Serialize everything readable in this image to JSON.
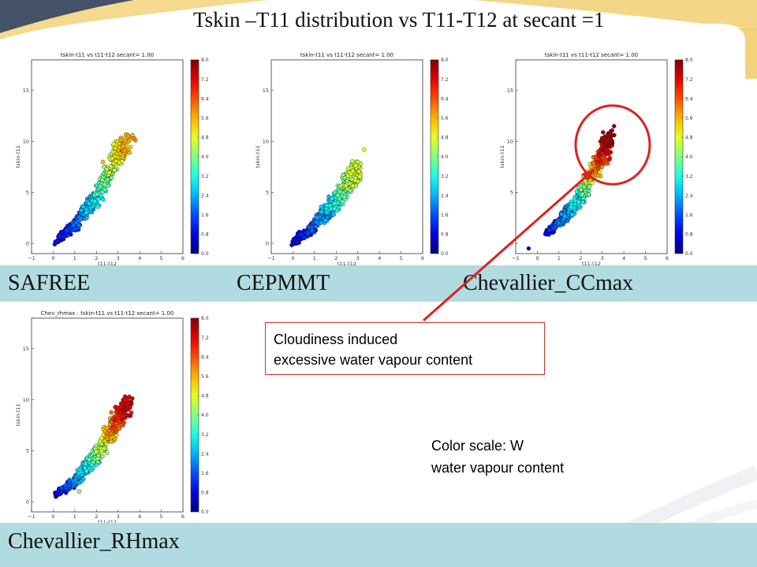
{
  "slide": {
    "title": "Tskin –T11 distribution vs T11-T12 at secant =1",
    "band_labels": [
      "SAFREE",
      "CEPMMT",
      "Chevallier_CCmax"
    ],
    "bottom_label": "Chevallier_RHmax",
    "callout": {
      "line1": "Cloudiness induced",
      "line2": "excessive water vapour content"
    },
    "note": {
      "line1": "Color scale: W",
      "line2": "water vapour content"
    },
    "colors": {
      "band": "#b1dbe0",
      "annotation": "#e02020",
      "deco_gold": "#f2d27a",
      "deco_navy": "#233a63"
    }
  },
  "chart_data": [
    {
      "type": "scatter",
      "title": "tskin-t11 vs t11-t12  secant= 1.00",
      "xlabel": "t11-t12",
      "ylabel": "tskin-t11",
      "xlim": [
        -1,
        6
      ],
      "ylim": [
        -1,
        18
      ],
      "xticks": [
        "−1",
        "0",
        "1",
        "2",
        "3",
        "4",
        "5",
        "6"
      ],
      "yticks": [
        "0",
        "5",
        "10",
        "15"
      ],
      "colorbar": {
        "min": 0.0,
        "max": 8.0,
        "ticks": [
          "0.0",
          "0.8",
          "1.6",
          "2.4",
          "3.2",
          "4.0",
          "4.8",
          "5.6",
          "6.4",
          "7.2",
          "8.0"
        ]
      },
      "trend": [
        [
          0,
          0,
          0.3
        ],
        [
          1,
          1.8,
          1.3
        ],
        [
          2,
          4.5,
          2.9
        ],
        [
          2.5,
          6.5,
          3.8
        ],
        [
          3,
          8.8,
          4.8
        ],
        [
          3.5,
          10.0,
          5.5
        ]
      ],
      "highlights": [
        [
          3.8,
          10.1,
          5.8
        ],
        [
          3.75,
          10.3,
          6.0
        ],
        [
          2.3,
          8.0,
          5.5
        ],
        [
          3.2,
          8.6,
          5.2
        ]
      ],
      "grid": false,
      "legend": "none"
    },
    {
      "type": "scatter",
      "title": "tskin-t11 vs t11-t12  secant= 1.00",
      "xlabel": "t11-t12",
      "ylabel": "tskin-t11",
      "xlim": [
        -1,
        6
      ],
      "ylim": [
        -1,
        18
      ],
      "xticks": [
        "−1",
        "0",
        "1",
        "2",
        "3",
        "4",
        "5",
        "6"
      ],
      "yticks": [
        "0",
        "5",
        "10",
        "15"
      ],
      "colorbar": {
        "min": 0.0,
        "max": 8.0,
        "ticks": [
          "0.0",
          "0.8",
          "1.6",
          "2.4",
          "3.2",
          "4.0",
          "4.8",
          "5.6",
          "6.4",
          "7.2",
          "8.0"
        ]
      },
      "trend": [
        [
          0,
          0,
          0.3
        ],
        [
          1,
          1.8,
          1.4
        ],
        [
          2,
          4.2,
          3.0
        ],
        [
          2.5,
          5.8,
          4.0
        ],
        [
          3,
          7.3,
          4.6
        ]
      ],
      "highlights": [
        [
          3.3,
          9.2,
          5.0
        ],
        [
          2.8,
          7.0,
          4.8
        ]
      ],
      "grid": false,
      "legend": "none"
    },
    {
      "type": "scatter",
      "title": "tskin-t11 vs t11-t12  secant= 1.00",
      "xlabel": "t11-t12",
      "ylabel": "tskin-t11",
      "xlim": [
        -1,
        6
      ],
      "ylim": [
        -1,
        18
      ],
      "xticks": [
        "−1",
        "0",
        "1",
        "2",
        "3",
        "4",
        "5",
        "6"
      ],
      "yticks": [
        "0",
        "5",
        "10",
        "15"
      ],
      "colorbar": {
        "min": 0.0,
        "max": 8.0,
        "ticks": [
          "0.0",
          "0.8",
          "1.6",
          "2.4",
          "3.2",
          "4.0",
          "4.8",
          "5.6",
          "6.4",
          "7.2",
          "8.0"
        ]
      },
      "trend": [
        [
          0.4,
          1.0,
          0.5
        ],
        [
          1,
          2.0,
          1.5
        ],
        [
          2,
          4.5,
          3.0
        ],
        [
          2.5,
          6.5,
          4.8
        ],
        [
          3,
          8.5,
          6.5
        ],
        [
          3.3,
          10.5,
          7.8
        ]
      ],
      "highlights": [
        [
          3.55,
          11.5,
          8.0
        ],
        [
          -0.4,
          -0.5,
          0.4
        ],
        [
          3.4,
          11.0,
          7.8
        ]
      ],
      "grid": false,
      "legend": "none"
    },
    {
      "type": "scatter",
      "title": "Chev_rhmax : tskin-t11 vs t11-t12  secant= 1.00",
      "xlabel": "t11-t12",
      "ylabel": "tskin-t11",
      "xlim": [
        -1,
        6
      ],
      "ylim": [
        -1,
        18
      ],
      "xticks": [
        "−1",
        "0",
        "1",
        "2",
        "3",
        "4",
        "5",
        "6"
      ],
      "yticks": [
        "0",
        "5",
        "10",
        "15"
      ],
      "colorbar": {
        "min": 0.0,
        "max": 8.0,
        "ticks": [
          "0.0",
          "0.8",
          "1.6",
          "2.4",
          "3.2",
          "4.0",
          "4.8",
          "5.6",
          "6.4",
          "7.2",
          "8.0"
        ]
      },
      "trend": [
        [
          0,
          0.5,
          0.4
        ],
        [
          1,
          2.0,
          1.8
        ],
        [
          2,
          4.5,
          3.6
        ],
        [
          2.5,
          6.3,
          5.0
        ],
        [
          3,
          8.2,
          6.4
        ],
        [
          3.5,
          9.7,
          7.4
        ]
      ],
      "highlights": [
        [
          3.6,
          9.8,
          7.5
        ],
        [
          1.2,
          1.0,
          4.0
        ]
      ],
      "grid": false,
      "legend": "none"
    }
  ]
}
